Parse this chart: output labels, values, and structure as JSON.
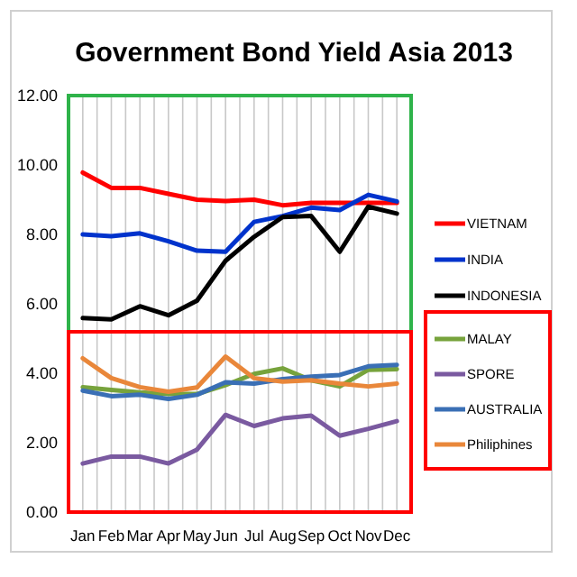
{
  "chart_data": {
    "type": "line",
    "title": "Government Bond Yield Asia 2013",
    "categories": [
      "Jan",
      "Feb",
      "Mar",
      "Apr",
      "May",
      "Jun",
      "Jul",
      "Aug",
      "Sep",
      "Oct",
      "Nov",
      "Dec"
    ],
    "ylim": [
      0,
      12
    ],
    "yticks": [
      {
        "value": 0,
        "label": "0.00"
      },
      {
        "value": 2,
        "label": "2.00"
      },
      {
        "value": 4,
        "label": "4.00"
      },
      {
        "value": 6,
        "label": "6.00"
      },
      {
        "value": 8,
        "label": "8.00"
      },
      {
        "value": 10,
        "label": "10.00"
      },
      {
        "value": 12,
        "label": "12.00"
      }
    ],
    "grid": "x",
    "legend": "right",
    "marker": "none",
    "line_style": "solid",
    "series": [
      {
        "name": "VIETNAM",
        "color": "#ff0000",
        "values": [
          9.78,
          9.34,
          9.34,
          9.17,
          9.0,
          8.96,
          9.0,
          8.84,
          8.91,
          8.91,
          8.91,
          8.91
        ]
      },
      {
        "name": "INDIA",
        "color": "#0033cc",
        "values": [
          8.0,
          7.95,
          8.03,
          7.8,
          7.53,
          7.5,
          8.36,
          8.53,
          8.77,
          8.7,
          9.14,
          8.95
        ]
      },
      {
        "name": "INDONESIA",
        "color": "#000000",
        "values": [
          5.59,
          5.55,
          5.93,
          5.67,
          6.09,
          7.24,
          7.93,
          8.5,
          8.53,
          7.5,
          8.8,
          8.6
        ]
      },
      {
        "name": "MALAY",
        "color": "#77a33c",
        "values": [
          3.6,
          3.52,
          3.45,
          3.4,
          3.4,
          3.66,
          3.98,
          4.14,
          3.8,
          3.62,
          4.1,
          4.12
        ]
      },
      {
        "name": "SPORE",
        "color": "#7a5aa0",
        "values": [
          1.4,
          1.6,
          1.6,
          1.4,
          1.8,
          2.8,
          2.48,
          2.7,
          2.78,
          2.2,
          2.4,
          2.62
        ]
      },
      {
        "name": "AUSTRALIA",
        "color": "#3a6fb5",
        "values": [
          3.5,
          3.34,
          3.38,
          3.26,
          3.38,
          3.74,
          3.7,
          3.83,
          3.9,
          3.95,
          4.2,
          4.24
        ]
      },
      {
        "name": "Philiphines",
        "color": "#e9873a",
        "values": [
          4.43,
          3.86,
          3.6,
          3.47,
          3.59,
          4.48,
          3.86,
          3.76,
          3.8,
          3.7,
          3.62,
          3.7
        ]
      }
    ]
  }
}
